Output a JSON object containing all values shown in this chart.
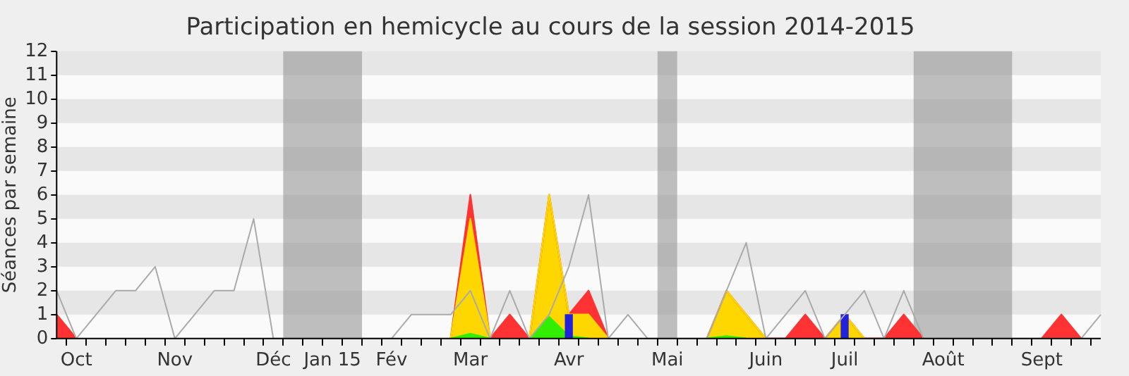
{
  "chart_data": {
    "type": "area",
    "title": "Participation en hemicycle au cours de la session 2014-2015",
    "ylabel": "Séances par semaine",
    "categories": [
      null,
      "Oct",
      null,
      null,
      null,
      null,
      "Nov",
      null,
      null,
      null,
      null,
      "Déc",
      null,
      null,
      "Jan 15",
      null,
      null,
      "Fév",
      null,
      null,
      null,
      "Mar",
      null,
      null,
      null,
      null,
      "Avr",
      null,
      null,
      null,
      null,
      "Mai",
      null,
      null,
      null,
      null,
      "Juin",
      null,
      null,
      null,
      "Juil",
      null,
      null,
      null,
      null,
      "Août",
      null,
      null,
      null,
      null,
      "Sept",
      null,
      null,
      null
    ],
    "ylim": [
      0,
      12
    ],
    "yticks": [
      0,
      1,
      2,
      3,
      4,
      5,
      6,
      7,
      8,
      9,
      10,
      11,
      12
    ],
    "legend": false,
    "series": [
      {
        "type": "bar",
        "color": "#2222dd",
        "values": [
          null,
          null,
          null,
          null,
          null,
          null,
          null,
          null,
          null,
          null,
          null,
          null,
          null,
          null,
          null,
          null,
          null,
          null,
          null,
          null,
          null,
          null,
          null,
          null,
          null,
          null,
          1,
          null,
          null,
          null,
          null,
          null,
          null,
          null,
          null,
          null,
          null,
          null,
          null,
          null,
          1,
          null,
          null,
          null,
          null,
          null,
          null,
          null,
          null,
          null,
          null,
          null,
          null,
          null
        ]
      },
      {
        "color": "#33ee00",
        "values": [
          null,
          null,
          null,
          null,
          null,
          null,
          null,
          null,
          null,
          null,
          null,
          null,
          null,
          null,
          null,
          null,
          null,
          null,
          null,
          null,
          0,
          0.2,
          0,
          null,
          0,
          0.9,
          0.1,
          0,
          null,
          null,
          null,
          null,
          null,
          0,
          0.1,
          0,
          null,
          null,
          null,
          null,
          null,
          null,
          null,
          null,
          null,
          null,
          null,
          null,
          null,
          null,
          null,
          null,
          null,
          null
        ]
      },
      {
        "color": "#ffd700",
        "values": [
          null,
          null,
          null,
          null,
          null,
          null,
          null,
          null,
          null,
          null,
          null,
          null,
          null,
          null,
          null,
          null,
          null,
          null,
          null,
          null,
          0,
          5,
          0,
          null,
          0,
          6,
          1,
          1,
          0,
          null,
          null,
          null,
          null,
          0,
          2,
          1,
          0,
          null,
          null,
          0,
          1,
          0,
          null,
          null,
          null,
          null,
          null,
          null,
          null,
          null,
          null,
          null,
          null,
          null
        ]
      },
      {
        "color": "#ff3333",
        "values": [
          1,
          0,
          null,
          null,
          null,
          null,
          null,
          null,
          null,
          null,
          null,
          null,
          null,
          null,
          null,
          null,
          null,
          null,
          null,
          null,
          0,
          6,
          0,
          1,
          0,
          6,
          1,
          2,
          0,
          null,
          null,
          null,
          null,
          0,
          2,
          1,
          0,
          0,
          1,
          0,
          1,
          0,
          0,
          1,
          0,
          null,
          null,
          null,
          null,
          null,
          0,
          1,
          0,
          null
        ]
      },
      {
        "type": "line",
        "color": "#aaaaaa",
        "values": [
          2,
          0,
          1,
          2,
          2,
          3,
          0,
          1,
          2,
          2,
          5,
          0,
          0,
          0,
          0,
          0,
          0,
          0,
          1,
          1,
          1,
          2,
          0,
          2,
          0,
          1,
          3,
          6,
          0,
          1,
          0,
          0,
          0,
          0,
          2,
          4,
          0,
          1,
          2,
          0,
          1,
          2,
          0,
          2,
          0,
          0,
          0,
          0,
          0,
          0,
          0,
          0,
          0,
          1
        ]
      }
    ]
  }
}
